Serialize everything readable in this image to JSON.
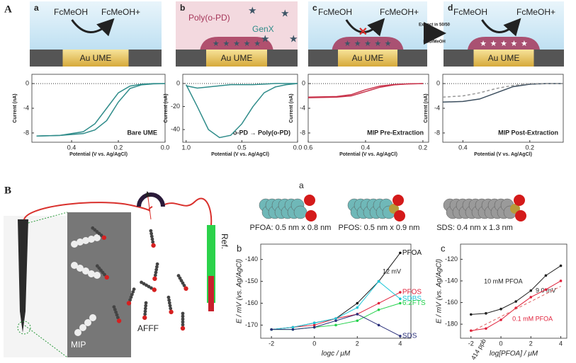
{
  "chart_data": [
    {
      "type": "line",
      "annotation": "Bare UME",
      "xlabel": "Potential (V vs. Ag/AgCl)",
      "ylabel": "Current (nA)",
      "xlim": [
        0.57,
        0.0
      ],
      "ylim": [
        -9.5,
        1.5
      ],
      "xticks": [
        0.4,
        0.2,
        {
          "value": 0,
          "label": "0.0"
        }
      ],
      "yticks": [
        0,
        -4,
        -8
      ],
      "zero_line": true,
      "x": [
        0.55,
        0.45,
        0.35,
        0.3,
        0.25,
        0.2,
        0.15,
        0.1,
        0.05,
        0.0
      ],
      "series": [
        {
          "color": "#2f8c8a",
          "values": [
            -8.5,
            -8.4,
            -8.1,
            -7.5,
            -6,
            -3,
            -0.8,
            -0.2,
            -0.05,
            0
          ]
        },
        {
          "color": "#2f8c8a",
          "values": [
            -8.5,
            -8.4,
            -7.8,
            -6.5,
            -4,
            -1.5,
            -0.4,
            -0.1,
            0,
            0
          ]
        }
      ]
    },
    {
      "type": "line",
      "annotation": "o-PD → Poly(o-PD)",
      "xlabel": "Potential (V vs. Ag/AgCl)",
      "ylabel": "Current (nA)",
      "xlim": [
        1.03,
        0.0
      ],
      "ylim": [
        -51,
        8
      ],
      "xticks": [
        {
          "value": 1,
          "label": "1.0"
        },
        0.5,
        {
          "value": 0,
          "label": "0.0"
        }
      ],
      "yticks": [
        0,
        -20,
        -40
      ],
      "zero_line": true,
      "x": [
        1.0,
        0.9,
        0.8,
        0.7,
        0.6,
        0.5,
        0.4,
        0.3,
        0.2,
        0.1,
        0.0
      ],
      "series": [
        {
          "color": "#2f8c8a",
          "values": [
            -1,
            -20,
            -40,
            -47,
            -45,
            -35,
            -20,
            -8,
            -3,
            -1,
            0
          ]
        },
        {
          "color": "#2f8c8a",
          "values": [
            -2,
            -4,
            -3,
            -2,
            -1,
            -1,
            -1,
            -0.5,
            0,
            0,
            0
          ]
        }
      ]
    },
    {
      "type": "line",
      "annotation": "MIP Pre-Extraction",
      "xlabel": "Potential (V vs. Ag/AgCl)",
      "ylabel": "Current (nA)",
      "xlim": [
        0.6,
        0.18
      ],
      "ylim": [
        -9.5,
        1.5
      ],
      "xticks": [
        0.6,
        0.4,
        0.2
      ],
      "yticks": [
        0,
        -4,
        -8
      ],
      "zero_line": true,
      "x": [
        0.6,
        0.5,
        0.45,
        0.4,
        0.35,
        0.3,
        0.25,
        0.2
      ],
      "series": [
        {
          "color": "#c8324a",
          "values": [
            -2.2,
            -2.1,
            -1.8,
            -1.0,
            -0.4,
            -0.15,
            -0.05,
            0
          ]
        },
        {
          "color": "#c8324a",
          "values": [
            -2.3,
            -2.2,
            -2.0,
            -1.3,
            -0.6,
            -0.2,
            -0.05,
            0
          ]
        }
      ]
    },
    {
      "type": "line",
      "annotation": "MIP Post-Extraction",
      "xlabel": "Potential (V vs. Ag/AgCl)",
      "ylabel": "Current (nA)",
      "xlim": [
        0.46,
        0.1
      ],
      "ylim": [
        -9.5,
        1.5
      ],
      "xticks": [
        0.4,
        0.2
      ],
      "yticks": [
        0,
        -4,
        -8
      ],
      "zero_line": true,
      "x": [
        0.46,
        0.4,
        0.35,
        0.3,
        0.25,
        0.2,
        0.15,
        0.1
      ],
      "series": [
        {
          "color": "#3d4f5f",
          "values": [
            -3,
            -2.9,
            -2.5,
            -1.5,
            -0.5,
            -0.1,
            0,
            0
          ]
        },
        {
          "color": "#999999",
          "dash": true,
          "values": [
            -2.2,
            -2,
            -1.5,
            -0.8,
            -0.3,
            0,
            0,
            0
          ]
        }
      ]
    },
    {
      "type": "line",
      "panel": "b",
      "xlabel": "logc / μM",
      "ylabel": "E / mV (vs. Ag/AgCl)",
      "xlim": [
        -2.5,
        4.5
      ],
      "ylim": [
        -176,
        -133
      ],
      "xticks": [
        -2,
        0,
        2,
        4
      ],
      "yticks": [
        -140,
        -150,
        -160,
        -170
      ],
      "markers": true,
      "legend": "line-end",
      "annotations": [
        "12 mV"
      ],
      "x": [
        -2,
        -1,
        0,
        1,
        2,
        3,
        4
      ],
      "series": [
        {
          "name": "PFOA",
          "color": "#111111",
          "values": [
            -172,
            -171,
            -169,
            -167,
            -160,
            -150,
            -137
          ]
        },
        {
          "name": "PFOS",
          "color": "#e0203a",
          "values": [
            -172,
            -171,
            -170,
            -167,
            -165,
            -160,
            -155
          ]
        },
        {
          "name": "SDBS",
          "color": "#1cc6d8",
          "values": [
            -172,
            -171,
            -169,
            -167,
            -162,
            -150,
            -158
          ]
        },
        {
          "name": "6:2FTS",
          "color": "#22d14a",
          "values": [
            -172,
            -172,
            -171,
            -170,
            -168,
            -163,
            -160
          ]
        },
        {
          "name": "SDS",
          "color": "#2a2f7a",
          "values": [
            -172,
            -172,
            -171,
            -168,
            -165,
            -170,
            -175
          ]
        }
      ]
    },
    {
      "type": "line",
      "panel": "c",
      "xlabel": "log[PFOA] / μM",
      "ylabel": "E / mV (vs. Ag/AgCl)",
      "xlim": [
        -2.7,
        4.4
      ],
      "ylim": [
        -193,
        -106
      ],
      "xticks": [
        -2,
        0,
        2,
        4
      ],
      "yticks": [
        -120,
        -140,
        -160,
        -180
      ],
      "markers": true,
      "legend": "line-middle",
      "annotations": [
        "9.0 mV",
        "414 ppb"
      ],
      "x": [
        -2,
        -1,
        0,
        1,
        2,
        3,
        4
      ],
      "series": [
        {
          "name": "10 mM PFOA",
          "color": "#222222",
          "values": [
            -171,
            -170,
            -166,
            -159,
            -149,
            -135,
            -126
          ]
        },
        {
          "name": "0.1 mM PFOA",
          "color": "#e0203a",
          "values": [
            -186,
            -184,
            -176,
            -165,
            -155,
            -148,
            -140
          ]
        },
        {
          "color": "#e06060",
          "dash": true,
          "nomarker": true,
          "values": [
            -187,
            -180,
            -173,
            -166,
            -159,
            -152,
            -145
          ]
        }
      ]
    }
  ],
  "labels": {
    "part_a": "A",
    "part_b": "B"
  },
  "schematic": [
    {
      "panel": "a",
      "reactant": "FcMeOH",
      "product": "FcMeOH+",
      "electrode": "Au UME"
    },
    {
      "panel": "b",
      "film": "Poly(o-PD)",
      "template": "GenX",
      "electrode": "Au UME"
    },
    {
      "panel": "c",
      "reactant": "FcMeOH",
      "product": "FcMeOH+",
      "electrode": "Au UME"
    },
    {
      "panel": "d",
      "reactant": "FcMeOH",
      "product": "FcMeOH+",
      "electrode": "Au UME"
    }
  ],
  "extraction": {
    "line1": "Extract in 50/50",
    "line2": "H2O/MeOH"
  },
  "sensor": {
    "mip": "MIP",
    "sample": "AFFF",
    "reference": "Ref."
  },
  "molecules": {
    "panel": "a",
    "items": [
      "PFOA: 0.5 nm x 0.8 nm",
      "PFOS: 0.5 nm x 0.9 nm",
      "SDS: 0.4 nm x 1.3 nm"
    ]
  }
}
